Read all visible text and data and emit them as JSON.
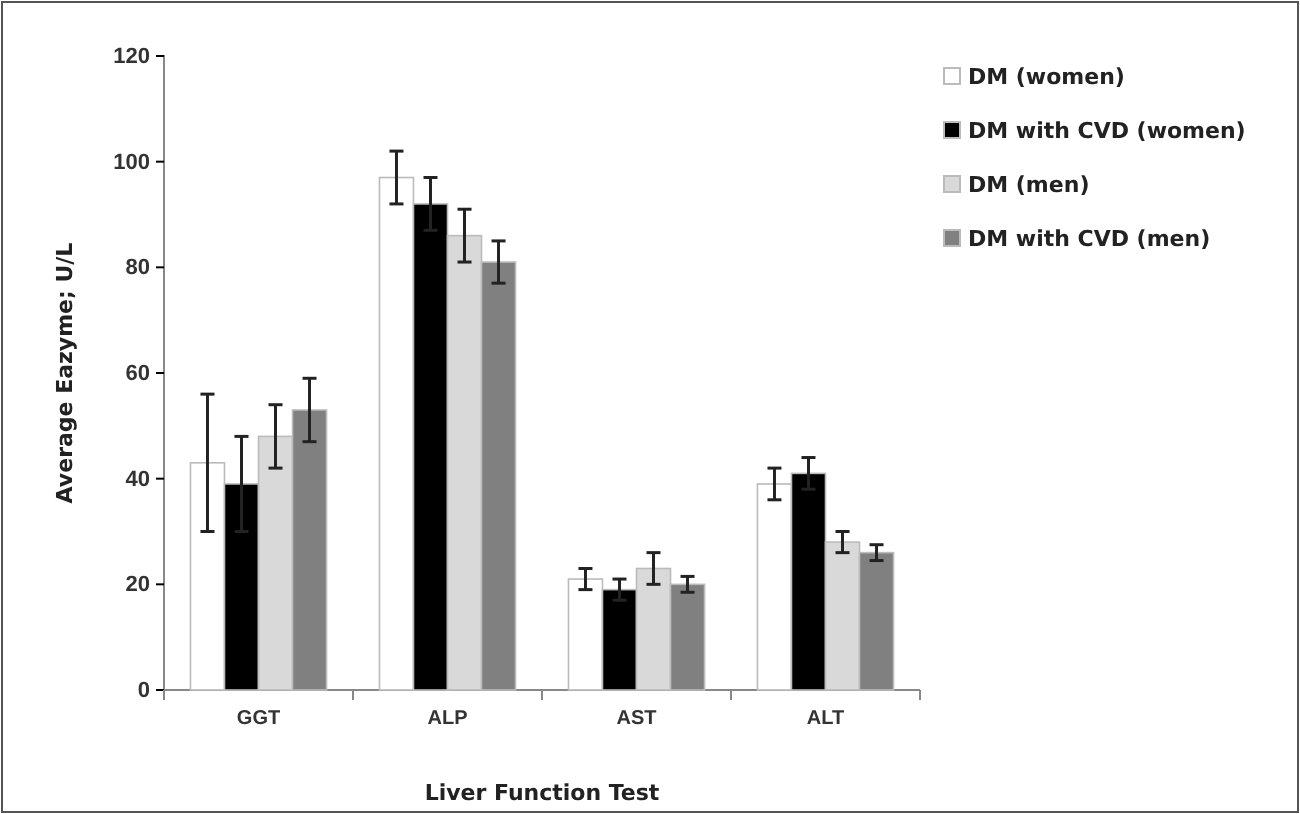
{
  "chart_data": {
    "type": "bar",
    "xlabel": "Liver Function Test",
    "ylabel": "Average Eazyme; U/L",
    "categories": [
      "GGT",
      "ALP",
      "AST",
      "ALT"
    ],
    "series": [
      {
        "name": "DM (women)",
        "color": "#ffffff",
        "values": [
          43,
          97,
          21,
          39
        ],
        "errors": [
          13,
          5,
          2,
          3
        ]
      },
      {
        "name": "DM with CVD (women)",
        "color": "#000000",
        "values": [
          39,
          92,
          19,
          41
        ],
        "errors": [
          9,
          5,
          2,
          3
        ]
      },
      {
        "name": "DM (men)",
        "color": "#d9d9d9",
        "values": [
          48,
          86,
          23,
          28
        ],
        "errors": [
          6,
          5,
          3,
          2
        ]
      },
      {
        "name": "DM with CVD (men)",
        "color": "#808080",
        "values": [
          53,
          81,
          20,
          26
        ],
        "errors": [
          6,
          4,
          1.5,
          1.5
        ]
      }
    ],
    "ylim": [
      0,
      120
    ],
    "yticks": [
      0,
      20,
      40,
      60,
      80,
      100,
      120
    ],
    "grid": false,
    "legend": "right"
  }
}
